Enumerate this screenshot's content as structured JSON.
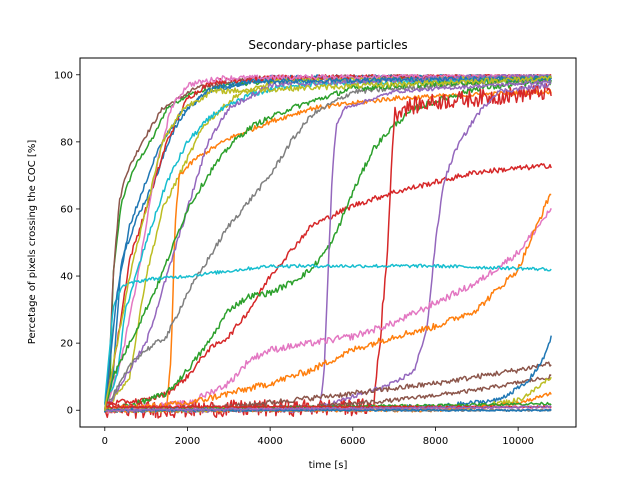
{
  "chart_data": {
    "type": "line",
    "title": "Secondary-phase particles",
    "xlabel": "time [s]",
    "ylabel": "Percetage of pixels crossing the COC [%]",
    "xlim": [
      -600,
      11400
    ],
    "ylim": [
      -5,
      105
    ],
    "xticks": [
      0,
      2000,
      4000,
      6000,
      8000,
      10000
    ],
    "yticks": [
      0,
      20,
      40,
      60,
      80,
      100
    ],
    "grid": false,
    "legend": "none",
    "series": [
      {
        "color": "#2ca02c",
        "noise": 0.6,
        "points": [
          [
            0,
            0
          ],
          [
            120,
            5
          ],
          [
            200,
            40
          ],
          [
            400,
            62
          ],
          [
            700,
            72
          ],
          [
            1200,
            82
          ],
          [
            1500,
            90
          ],
          [
            2000,
            94
          ],
          [
            3000,
            97
          ],
          [
            5000,
            99
          ],
          [
            10800,
            99
          ]
        ]
      },
      {
        "color": "#8c564b",
        "noise": 0.6,
        "points": [
          [
            0,
            0
          ],
          [
            100,
            10
          ],
          [
            200,
            40
          ],
          [
            350,
            62
          ],
          [
            500,
            70
          ],
          [
            900,
            80
          ],
          [
            1400,
            90
          ],
          [
            2200,
            96
          ],
          [
            3500,
            99
          ],
          [
            10800,
            100
          ]
        ]
      },
      {
        "color": "#1f77b4",
        "noise": 0.8,
        "points": [
          [
            0,
            0
          ],
          [
            200,
            10
          ],
          [
            400,
            45
          ],
          [
            800,
            58
          ],
          [
            1200,
            68
          ],
          [
            1600,
            82
          ],
          [
            2000,
            90
          ],
          [
            2600,
            96
          ],
          [
            4000,
            99
          ],
          [
            10800,
            100
          ]
        ]
      },
      {
        "color": "#d62728",
        "noise": 0.8,
        "points": [
          [
            0,
            0
          ],
          [
            300,
            20
          ],
          [
            600,
            45
          ],
          [
            1000,
            60
          ],
          [
            1500,
            80
          ],
          [
            2000,
            93
          ],
          [
            2600,
            98
          ],
          [
            4000,
            99
          ],
          [
            10800,
            100
          ]
        ]
      },
      {
        "color": "#e377c2",
        "noise": 0.8,
        "points": [
          [
            0,
            0
          ],
          [
            400,
            15
          ],
          [
            800,
            40
          ],
          [
            1200,
            70
          ],
          [
            1600,
            90
          ],
          [
            2000,
            97
          ],
          [
            2800,
            99
          ],
          [
            10800,
            100
          ]
        ]
      },
      {
        "color": "#bcbd22",
        "noise": 0.8,
        "points": [
          [
            0,
            0
          ],
          [
            600,
            10
          ],
          [
            1000,
            40
          ],
          [
            1400,
            60
          ],
          [
            1800,
            70
          ],
          [
            2400,
            85
          ],
          [
            3200,
            94
          ],
          [
            4200,
            98
          ],
          [
            10800,
            99
          ]
        ]
      },
      {
        "color": "#17becf",
        "noise": 0.8,
        "points": [
          [
            0,
            2
          ],
          [
            300,
            10
          ],
          [
            500,
            30
          ],
          [
            1000,
            50
          ],
          [
            1500,
            68
          ],
          [
            2000,
            80
          ],
          [
            2600,
            88
          ],
          [
            3500,
            94
          ],
          [
            4500,
            97
          ],
          [
            10800,
            99
          ]
        ]
      },
      {
        "color": "#ff7f0e",
        "noise": 0.7,
        "points": [
          [
            0,
            0
          ],
          [
            1500,
            1
          ],
          [
            1600,
            15
          ],
          [
            1700,
            55
          ],
          [
            1800,
            70
          ],
          [
            2200,
            75
          ],
          [
            3000,
            81
          ],
          [
            4000,
            86
          ],
          [
            5000,
            90
          ],
          [
            7000,
            93
          ],
          [
            10800,
            95
          ]
        ]
      },
      {
        "color": "#9467bd",
        "noise": 0.8,
        "points": [
          [
            0,
            0
          ],
          [
            1000,
            20
          ],
          [
            1500,
            40
          ],
          [
            2000,
            60
          ],
          [
            2500,
            80
          ],
          [
            3000,
            90
          ],
          [
            4000,
            97
          ],
          [
            10800,
            100
          ]
        ]
      },
      {
        "color": "#7f7f7f",
        "noise": 0.8,
        "points": [
          [
            0,
            0
          ],
          [
            700,
            15
          ],
          [
            1000,
            18
          ],
          [
            1500,
            22
          ],
          [
            2000,
            35
          ],
          [
            2500,
            45
          ],
          [
            3000,
            55
          ],
          [
            4000,
            70
          ],
          [
            4500,
            80
          ],
          [
            5000,
            88
          ],
          [
            6000,
            95
          ],
          [
            10800,
            99
          ]
        ]
      },
      {
        "color": "#2ca02c",
        "noise": 0.8,
        "points": [
          [
            0,
            0
          ],
          [
            200,
            10
          ],
          [
            800,
            25
          ],
          [
            1300,
            38
          ],
          [
            2000,
            60
          ],
          [
            2600,
            72
          ],
          [
            3100,
            80
          ],
          [
            3600,
            85
          ],
          [
            4500,
            90
          ],
          [
            6000,
            96
          ],
          [
            10800,
            99
          ]
        ]
      },
      {
        "color": "#d62728",
        "noise": 0.8,
        "points": [
          [
            0,
            2
          ],
          [
            1000,
            3
          ],
          [
            1500,
            5
          ],
          [
            2000,
            10
          ],
          [
            2500,
            18
          ],
          [
            3000,
            22
          ],
          [
            3500,
            30
          ],
          [
            4000,
            40
          ],
          [
            5000,
            55
          ],
          [
            6000,
            61
          ],
          [
            7000,
            65
          ],
          [
            8000,
            68
          ],
          [
            9000,
            71
          ],
          [
            10800,
            73
          ]
        ]
      },
      {
        "color": "#2ca02c",
        "noise": 0.9,
        "points": [
          [
            0,
            0
          ],
          [
            800,
            2
          ],
          [
            1500,
            5
          ],
          [
            2000,
            12
          ],
          [
            2500,
            20
          ],
          [
            3000,
            30
          ],
          [
            3500,
            34
          ],
          [
            4000,
            35
          ],
          [
            4500,
            38
          ],
          [
            5000,
            42
          ],
          [
            5500,
            50
          ],
          [
            6000,
            65
          ],
          [
            6500,
            78
          ],
          [
            7000,
            85
          ],
          [
            7500,
            90
          ],
          [
            9000,
            96
          ],
          [
            10800,
            98
          ]
        ]
      },
      {
        "color": "#9467bd",
        "noise": 0.5,
        "points": [
          [
            0,
            0
          ],
          [
            5200,
            1
          ],
          [
            5300,
            10
          ],
          [
            5400,
            40
          ],
          [
            5500,
            70
          ],
          [
            5600,
            85
          ],
          [
            5800,
            90
          ],
          [
            7000,
            95
          ],
          [
            10800,
            98
          ]
        ]
      },
      {
        "color": "#d62728",
        "noise": 2.5,
        "points": [
          [
            0,
            0
          ],
          [
            6500,
            1
          ],
          [
            6800,
            40
          ],
          [
            7000,
            88
          ],
          [
            7200,
            90
          ],
          [
            8000,
            92
          ],
          [
            9000,
            93
          ],
          [
            10800,
            95
          ]
        ]
      },
      {
        "color": "#9467bd",
        "noise": 0.7,
        "points": [
          [
            0,
            0
          ],
          [
            5000,
            0
          ],
          [
            6000,
            4
          ],
          [
            7000,
            8
          ],
          [
            7500,
            12
          ],
          [
            7800,
            25
          ],
          [
            8000,
            50
          ],
          [
            8200,
            68
          ],
          [
            8500,
            78
          ],
          [
            9000,
            88
          ],
          [
            9500,
            95
          ],
          [
            10800,
            97
          ]
        ]
      },
      {
        "color": "#e377c2",
        "noise": 1.0,
        "points": [
          [
            0,
            0
          ],
          [
            2000,
            2
          ],
          [
            3000,
            8
          ],
          [
            3500,
            15
          ],
          [
            4000,
            18
          ],
          [
            5000,
            20
          ],
          [
            6000,
            22
          ],
          [
            7000,
            26
          ],
          [
            8000,
            32
          ],
          [
            9000,
            38
          ],
          [
            10000,
            47
          ],
          [
            10800,
            60
          ]
        ]
      },
      {
        "color": "#ff7f0e",
        "noise": 1.0,
        "points": [
          [
            0,
            0
          ],
          [
            2000,
            2
          ],
          [
            3000,
            5
          ],
          [
            4000,
            8
          ],
          [
            5000,
            12
          ],
          [
            6000,
            18
          ],
          [
            7000,
            22
          ],
          [
            8000,
            25
          ],
          [
            9000,
            30
          ],
          [
            10000,
            42
          ],
          [
            10800,
            65
          ]
        ]
      },
      {
        "color": "#17becf",
        "noise": 0.5,
        "points": [
          [
            0,
            2
          ],
          [
            200,
            30
          ],
          [
            400,
            37
          ],
          [
            1000,
            39
          ],
          [
            2000,
            40
          ],
          [
            4000,
            43
          ],
          [
            6000,
            43
          ],
          [
            8000,
            43
          ],
          [
            10800,
            42
          ]
        ]
      },
      {
        "color": "#8c564b",
        "noise": 0.8,
        "points": [
          [
            0,
            0
          ],
          [
            3000,
            1
          ],
          [
            6000,
            5
          ],
          [
            8000,
            8
          ],
          [
            10000,
            12
          ],
          [
            10800,
            14
          ]
        ]
      },
      {
        "color": "#8c564b",
        "noise": 0.6,
        "points": [
          [
            0,
            0
          ],
          [
            5000,
            1
          ],
          [
            7000,
            3
          ],
          [
            9000,
            6
          ],
          [
            10800,
            10
          ]
        ]
      },
      {
        "color": "#1f77b4",
        "noise": 0.7,
        "points": [
          [
            0,
            0
          ],
          [
            8000,
            1
          ],
          [
            9500,
            3
          ],
          [
            10200,
            8
          ],
          [
            10600,
            15
          ],
          [
            10800,
            22
          ]
        ]
      },
      {
        "color": "#bcbd22",
        "noise": 0.8,
        "points": [
          [
            0,
            0
          ],
          [
            9000,
            1
          ],
          [
            10000,
            3
          ],
          [
            10400,
            6
          ],
          [
            10800,
            10
          ]
        ]
      },
      {
        "color": "#ff7f0e",
        "noise": 0.5,
        "points": [
          [
            0,
            0
          ],
          [
            8000,
            0
          ],
          [
            10000,
            2
          ],
          [
            10800,
            5
          ]
        ]
      },
      {
        "color": "#2ca02c",
        "noise": 0.4,
        "points": [
          [
            0,
            0
          ],
          [
            10800,
            2
          ]
        ]
      },
      {
        "color": "#e377c2",
        "noise": 0.4,
        "points": [
          [
            0,
            0
          ],
          [
            10800,
            1
          ]
        ]
      },
      {
        "color": "#d62728",
        "noise": 0.3,
        "points": [
          [
            0,
            1
          ],
          [
            10800,
            1
          ]
        ]
      },
      {
        "color": "#7f7f7f",
        "noise": 0.3,
        "points": [
          [
            0,
            0
          ],
          [
            10800,
            0
          ]
        ]
      },
      {
        "color": "#1f77b4",
        "noise": 0.3,
        "points": [
          [
            0,
            0
          ],
          [
            10800,
            0
          ]
        ]
      },
      {
        "color": "#9467bd",
        "noise": 0.3,
        "points": [
          [
            0,
            0
          ],
          [
            10800,
            1
          ]
        ]
      },
      {
        "color": "#1f77b4",
        "noise": 0.7,
        "points": [
          [
            0,
            0
          ],
          [
            300,
            35
          ],
          [
            600,
            55
          ],
          [
            900,
            65
          ],
          [
            1300,
            78
          ],
          [
            1800,
            88
          ],
          [
            2500,
            95
          ],
          [
            3500,
            98
          ],
          [
            10800,
            99
          ]
        ]
      },
      {
        "color": "#bcbd22",
        "noise": 0.8,
        "points": [
          [
            0,
            0
          ],
          [
            300,
            20
          ],
          [
            600,
            40
          ],
          [
            900,
            55
          ],
          [
            1400,
            80
          ],
          [
            1900,
            90
          ],
          [
            2600,
            95
          ],
          [
            10800,
            99
          ]
        ]
      }
    ]
  }
}
